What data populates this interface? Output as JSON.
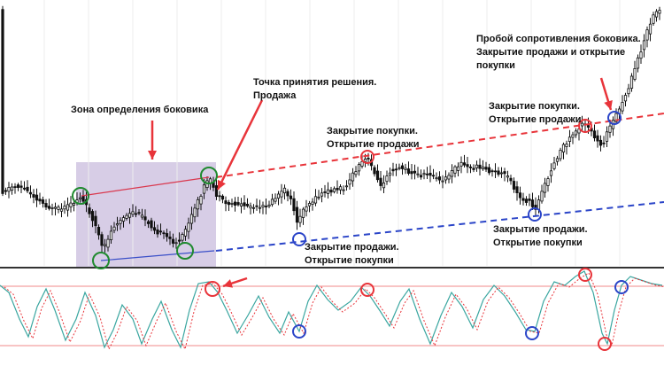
{
  "chart_data": {
    "type": "candlestick",
    "title": "",
    "colors": {
      "candle": "#111111",
      "zone_fill": "#d7cde6",
      "resistance": "#e8343a",
      "support": "#2b45c8",
      "arrow": "#e8343a",
      "marker_red": "#e8343a",
      "marker_green": "#1f8a2f",
      "marker_blue": "#2b45c8",
      "stoch_main": "#3aa6a0",
      "stoch_signal": "#e8343a",
      "level_line": "#f08a8a"
    },
    "annotations": [
      {
        "id": "zone",
        "lines": [
          "Зона определения боковика"
        ]
      },
      {
        "id": "decision",
        "lines": [
          "Точка принятия решения.",
          "Продажа"
        ]
      },
      {
        "id": "close-buy-1",
        "lines": [
          "Закрытие покупки.",
          "Открытие продажи"
        ]
      },
      {
        "id": "close-sell-1",
        "lines": [
          "Закрытие продажи.",
          "Открытие покупки"
        ]
      },
      {
        "id": "close-buy-2",
        "lines": [
          "Закрытие покупки.",
          "Открытие продажи"
        ]
      },
      {
        "id": "close-sell-2",
        "lines": [
          "Закрытие продажи.",
          "Открытие покупки"
        ]
      },
      {
        "id": "breakout",
        "lines": [
          "Пробой сопротивления боковика.",
          "Закрытие продажи и открытие",
          "покупки"
        ]
      }
    ]
  }
}
